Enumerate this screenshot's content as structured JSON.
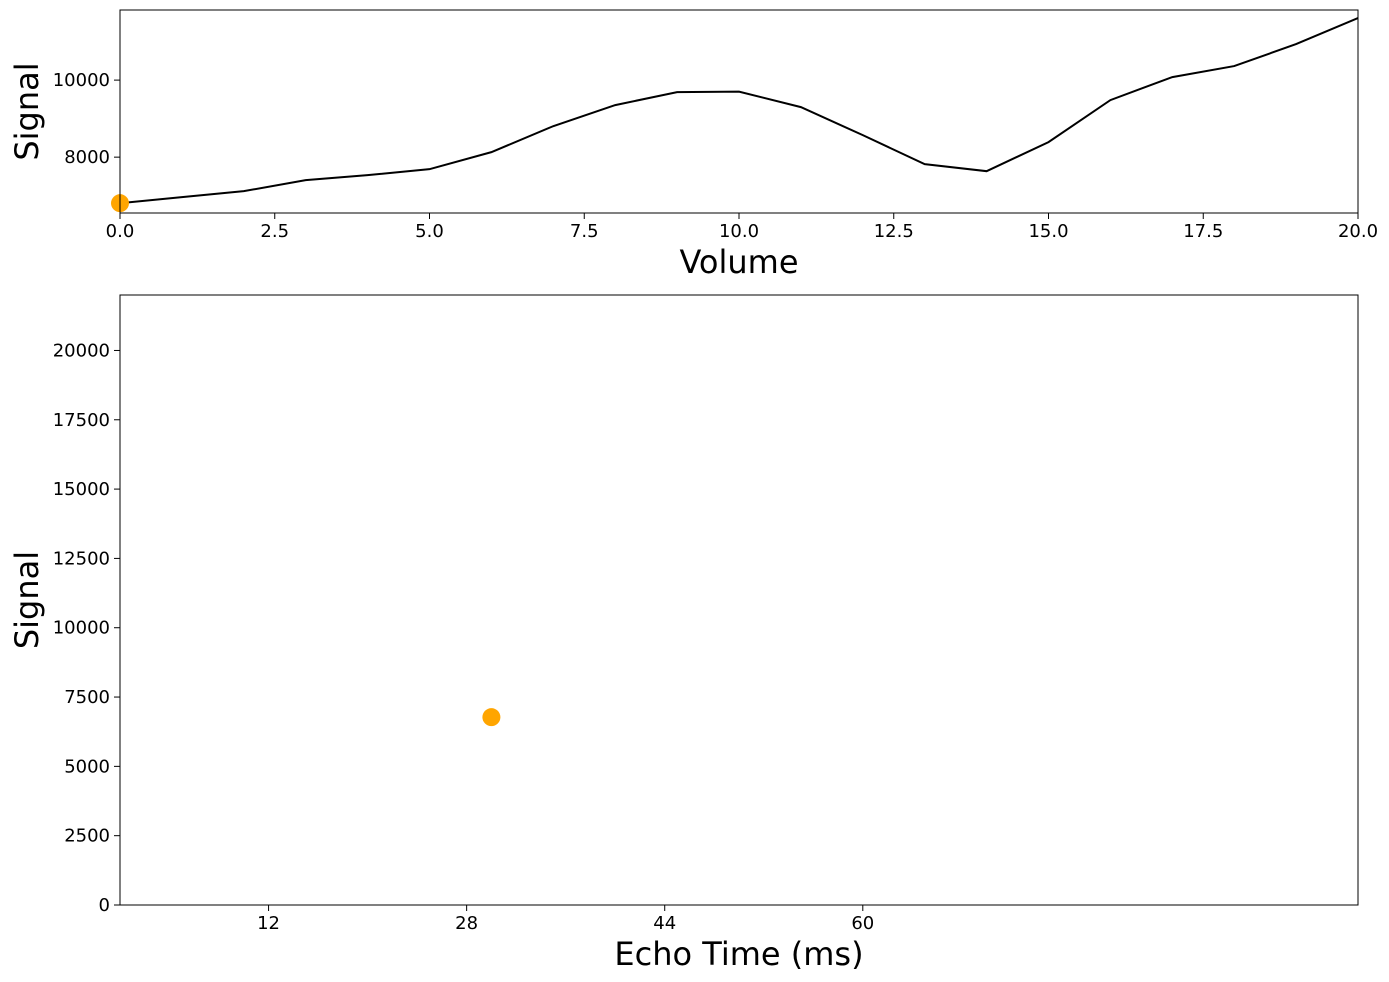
{
  "chart_data": [
    {
      "type": "line",
      "xlabel": "Volume",
      "ylabel": "Signal",
      "x": [
        0,
        1,
        2,
        3,
        4,
        5,
        6,
        7,
        8,
        9,
        10,
        11,
        12,
        13,
        14,
        15,
        16,
        17,
        18,
        19,
        20
      ],
      "series": [
        {
          "color": "#000000",
          "values": [
            6805,
            6961,
            7117,
            7403,
            7532,
            7688,
            8130,
            8805,
            9351,
            9688,
            9700,
            9299,
            8571,
            7818,
            7636,
            8390,
            9481,
            10078,
            10364,
            10935,
            11610
          ]
        }
      ],
      "points": {
        "color": "#ffa500",
        "x": [
          0
        ],
        "values": [
          6805
        ]
      },
      "xlim": [
        0,
        20
      ],
      "ylim": [
        6550,
        11820
      ],
      "xticks": [
        {
          "value": 0,
          "label": "0.0"
        },
        {
          "value": 2.5,
          "label": "2.5"
        },
        {
          "value": 5,
          "label": "5.0"
        },
        {
          "value": 7.5,
          "label": "7.5"
        },
        {
          "value": 10,
          "label": "10.0"
        },
        {
          "value": 12.5,
          "label": "12.5"
        },
        {
          "value": 15,
          "label": "15.0"
        },
        {
          "value": 17.5,
          "label": "17.5"
        },
        {
          "value": 20,
          "label": "20.0"
        }
      ],
      "yticks": [
        8000,
        10000
      ]
    },
    {
      "type": "scatter",
      "xlabel": "Echo Time (ms)",
      "ylabel": "Signal",
      "points": {
        "color": "#ffa500",
        "x": [
          30
        ],
        "values": [
          6775
        ]
      },
      "xlim": [
        0,
        100
      ],
      "ylim": [
        0,
        22000
      ],
      "xticks": [
        12,
        28,
        44,
        60
      ],
      "yticks": [
        0,
        2500,
        5000,
        7500,
        10000,
        12500,
        15000,
        17500,
        20000
      ]
    }
  ]
}
